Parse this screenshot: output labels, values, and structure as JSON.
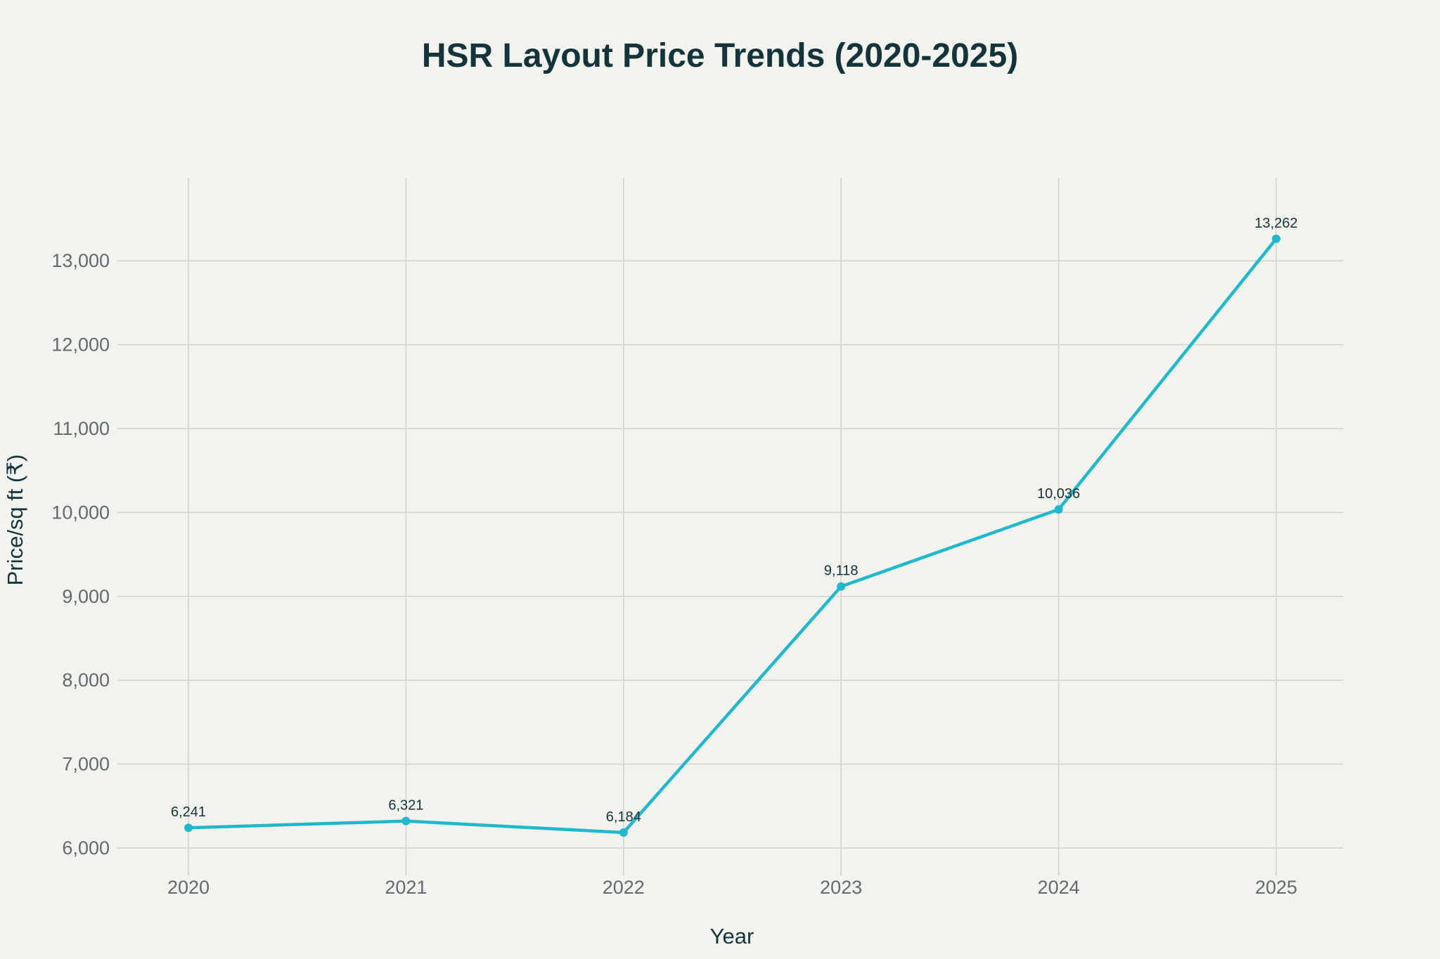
{
  "chart_data": {
    "type": "line",
    "title": "HSR Layout Price Trends (2020-2025)",
    "xlabel": "Year",
    "ylabel": "Price/sq ft (₹)",
    "categories": [
      "2020",
      "2021",
      "2022",
      "2023",
      "2024",
      "2025"
    ],
    "values": [
      6241,
      6321,
      6184,
      9118,
      10036,
      13262
    ],
    "data_labels": [
      "6,241",
      "6,321",
      "6,184",
      "9,118",
      "10,036",
      "13,262"
    ],
    "yticks": [
      6000,
      7000,
      8000,
      9000,
      10000,
      11000,
      12000,
      13000
    ],
    "ytick_labels": [
      "6,000",
      "7,000",
      "8,000",
      "9,000",
      "10,000",
      "11,000",
      "12,000",
      "13,000"
    ],
    "ylim": [
      5660,
      13760
    ],
    "grid": true,
    "legend": "none",
    "colors": {
      "line": "#1fb8cd",
      "title": "#13343b",
      "background": "#f3f3ee"
    }
  }
}
